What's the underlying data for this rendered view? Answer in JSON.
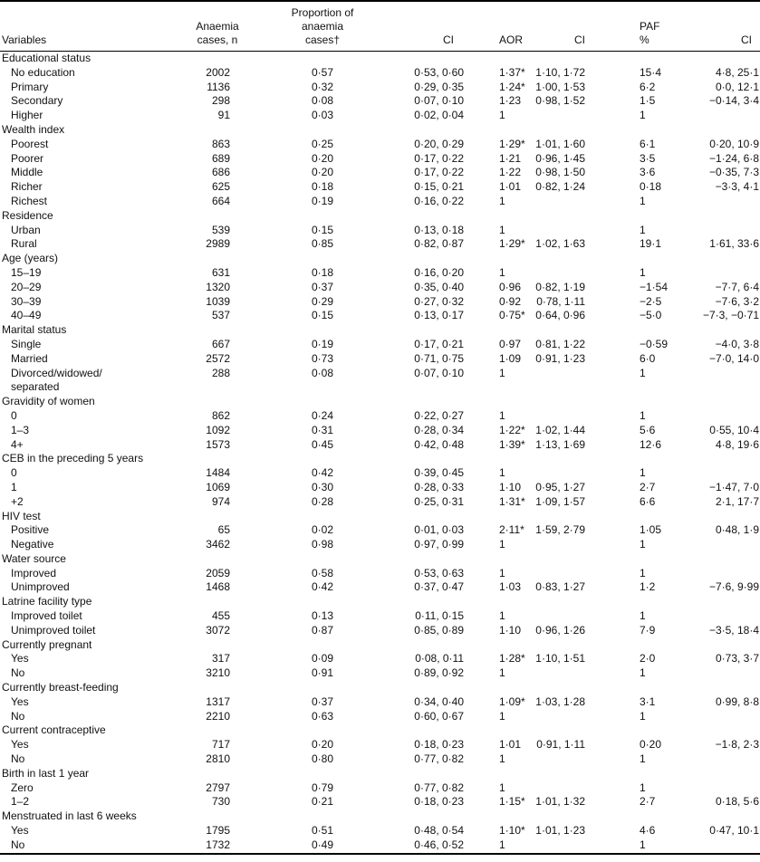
{
  "columns": {
    "variables": "Variables",
    "cases_n": "Anaemia\ncases, n",
    "proportion": "Proportion of\nanaemia\ncases†",
    "ci_proportion": "CI",
    "aor": "AOR",
    "ci_aor": "CI",
    "paf": "PAF\n%",
    "ci_paf": "CI"
  },
  "groups": [
    {
      "label": "Educational status",
      "rows": [
        {
          "variable": "No education",
          "n": "2002",
          "proportion": "0·57",
          "ci1": "0·53, 0·60",
          "aor": "1·37*",
          "ci2": "1·10, 1·72",
          "paf": "15·4",
          "ci3": "4·8, 25·1"
        },
        {
          "variable": "Primary",
          "n": "1136",
          "proportion": "0·32",
          "ci1": "0·29, 0·35",
          "aor": "1·24*",
          "ci2": "1·00, 1·53",
          "paf": "6·2",
          "ci3": "0·0, 12·1"
        },
        {
          "variable": "Secondary",
          "n": "298",
          "proportion": "0·08",
          "ci1": "0·07, 0·10",
          "aor": "1·23",
          "ci2": "0·98, 1·52",
          "paf": "1·5",
          "ci3": "−0·14, 3·4"
        },
        {
          "variable": "Higher",
          "n": "91",
          "proportion": "0·03",
          "ci1": "0·02, 0·04",
          "aor": "1",
          "ci2": "",
          "paf": "1",
          "ci3": ""
        }
      ]
    },
    {
      "label": "Wealth index",
      "rows": [
        {
          "variable": "Poorest",
          "n": "863",
          "proportion": "0·25",
          "ci1": "0·20, 0·29",
          "aor": "1·29*",
          "ci2": "1·01, 1·60",
          "paf": "6·1",
          "ci3": "0·20, 10·9"
        },
        {
          "variable": "Poorer",
          "n": "689",
          "proportion": "0·20",
          "ci1": "0·17, 0·22",
          "aor": "1·21",
          "ci2": "0·96, 1·45",
          "paf": "3·5",
          "ci3": "−1·24, 6·8"
        },
        {
          "variable": "Middle",
          "n": "686",
          "proportion": "0·20",
          "ci1": "0·17, 0·22",
          "aor": "1·22",
          "ci2": "0·98, 1·50",
          "paf": "3·6",
          "ci3": "−0·35, 7·3"
        },
        {
          "variable": "Richer",
          "n": "625",
          "proportion": "0·18",
          "ci1": "0·15, 0·21",
          "aor": "1·01",
          "ci2": "0·82, 1·24",
          "paf": "0·18",
          "ci3": "−3·3, 4·1"
        },
        {
          "variable": "Richest",
          "n": "664",
          "proportion": "0·19",
          "ci1": "0·16, 0·22",
          "aor": "1",
          "ci2": "",
          "paf": "1",
          "ci3": ""
        }
      ]
    },
    {
      "label": "Residence",
      "rows": [
        {
          "variable": "Urban",
          "n": "539",
          "proportion": "0·15",
          "ci1": "0·13, 0·18",
          "aor": "1",
          "ci2": "",
          "paf": "1",
          "ci3": ""
        },
        {
          "variable": "Rural",
          "n": "2989",
          "proportion": "0·85",
          "ci1": "0·82, 0·87",
          "aor": "1·29*",
          "ci2": "1·02, 1·63",
          "paf": "19·1",
          "ci3": "1·61, 33·6"
        }
      ]
    },
    {
      "label": "Age (years)",
      "rows": [
        {
          "variable": "15–19",
          "n": "631",
          "proportion": "0·18",
          "ci1": "0·16, 0·20",
          "aor": "1",
          "ci2": "",
          "paf": "1",
          "ci3": ""
        },
        {
          "variable": "20–29",
          "n": "1320",
          "proportion": "0·37",
          "ci1": "0·35, 0·40",
          "aor": "0·96",
          "ci2": "0·82, 1·19",
          "paf": "−1·54",
          "ci3": "−7·7, 6·4"
        },
        {
          "variable": "30–39",
          "n": "1039",
          "proportion": "0·29",
          "ci1": "0·27, 0·32",
          "aor": "0·92",
          "ci2": "0·78, 1·11",
          "paf": "−2·5",
          "ci3": "−7·6, 3·2"
        },
        {
          "variable": "40–49",
          "n": "537",
          "proportion": "0·15",
          "ci1": "0·13, 0·17",
          "aor": "0·75*",
          "ci2": "0·64, 0·96",
          "paf": "−5·0",
          "ci3": "−7·3, −0·71"
        }
      ]
    },
    {
      "label": "Marital status",
      "rows": [
        {
          "variable": "Single",
          "n": "667",
          "proportion": "0·19",
          "ci1": "0·17, 0·21",
          "aor": "0·97",
          "ci2": "0·81, 1·22",
          "paf": "−0·59",
          "ci3": "−4·0, 3·8"
        },
        {
          "variable": "Married",
          "n": "2572",
          "proportion": "0·73",
          "ci1": "0·71, 0·75",
          "aor": "1·09",
          "ci2": "0·91, 1·23",
          "paf": "6·0",
          "ci3": "−7·0, 14·0"
        },
        {
          "variable": "Divorced/widowed/\nseparated",
          "n": "288",
          "proportion": "0·08",
          "ci1": "0·07, 0·10",
          "aor": "1",
          "ci2": "",
          "paf": "1",
          "ci3": ""
        }
      ]
    },
    {
      "label": "Gravidity of women",
      "rows": [
        {
          "variable": "0",
          "n": "862",
          "proportion": "0·24",
          "ci1": "0·22, 0·27",
          "aor": "1",
          "ci2": "",
          "paf": "1",
          "ci3": ""
        },
        {
          "variable": "1–3",
          "n": "1092",
          "proportion": "0·31",
          "ci1": "0·28, 0·34",
          "aor": "1·22*",
          "ci2": "1·02, 1·44",
          "paf": "5·6",
          "ci3": "0·55, 10·4"
        },
        {
          "variable": "4+",
          "n": "1573",
          "proportion": "0·45",
          "ci1": "0·42, 0·48",
          "aor": "1·39*",
          "ci2": "1·13, 1·69",
          "paf": "12·6",
          "ci3": "4·8, 19·6"
        }
      ]
    },
    {
      "label": "CEB in the preceding 5 years",
      "rows": [
        {
          "variable": "0",
          "n": "1484",
          "proportion": "0·42",
          "ci1": "0·39, 0·45",
          "aor": "1",
          "ci2": "",
          "paf": "1",
          "ci3": ""
        },
        {
          "variable": "1",
          "n": "1069",
          "proportion": "0·30",
          "ci1": "0·28, 0·33",
          "aor": "1·10",
          "ci2": "0·95, 1·27",
          "paf": "2·7",
          "ci3": "−1·47, 7·0"
        },
        {
          "variable": "+2",
          "n": "974",
          "proportion": "0·28",
          "ci1": "0·25, 0·31",
          "aor": "1·31*",
          "ci2": "1·09, 1·57",
          "paf": "6·6",
          "ci3": "2·1, 17·7"
        }
      ]
    },
    {
      "label": "HIV test",
      "rows": [
        {
          "variable": "Positive",
          "n": "65",
          "proportion": "0·02",
          "ci1": "0·01, 0·03",
          "aor": "2·11*",
          "ci2": "1·59, 2·79",
          "paf": "1·05",
          "ci3": "0·48, 1·9"
        },
        {
          "variable": "Negative",
          "n": "3462",
          "proportion": "0·98",
          "ci1": "0·97, 0·99",
          "aor": "1",
          "ci2": "",
          "paf": "1",
          "ci3": ""
        }
      ]
    },
    {
      "label": "Water source",
      "rows": [
        {
          "variable": "Improved",
          "n": "2059",
          "proportion": "0·58",
          "ci1": "0·53, 0·63",
          "aor": "1",
          "ci2": "",
          "paf": "1",
          "ci3": ""
        },
        {
          "variable": "Unimproved",
          "n": "1468",
          "proportion": "0·42",
          "ci1": "0·37, 0·47",
          "aor": "1·03",
          "ci2": "0·83, 1·27",
          "paf": "1·2",
          "ci3": "−7·6, 9·99"
        }
      ]
    },
    {
      "label": "Latrine facility type",
      "rows": [
        {
          "variable": "Improved toilet",
          "n": "455",
          "proportion": "0·13",
          "ci1": "0·11, 0·15",
          "aor": "1",
          "ci2": "",
          "paf": "1",
          "ci3": ""
        },
        {
          "variable": "Unimproved toilet",
          "n": "3072",
          "proportion": "0·87",
          "ci1": "0·85, 0·89",
          "aor": "1·10",
          "ci2": "0·96, 1·26",
          "paf": "7·9",
          "ci3": "−3·5, 18·4"
        }
      ]
    },
    {
      "label": "Currently pregnant",
      "rows": [
        {
          "variable": "Yes",
          "n": "317",
          "proportion": "0·09",
          "ci1": "0·08, 0·11",
          "aor": "1·28*",
          "ci2": "1·10, 1·51",
          "paf": "2·0",
          "ci3": "0·73, 3·7"
        },
        {
          "variable": "No",
          "n": "3210",
          "proportion": "0·91",
          "ci1": "0·89, 0·92",
          "aor": "1",
          "ci2": "",
          "paf": "1",
          "ci3": ""
        }
      ]
    },
    {
      "label": "Currently breast-feeding",
      "rows": [
        {
          "variable": "Yes",
          "n": "1317",
          "proportion": "0·37",
          "ci1": "0·34, 0·40",
          "aor": "1·09*",
          "ci2": "1·03, 1·28",
          "paf": "3·1",
          "ci3": "0·99, 8·8"
        },
        {
          "variable": "No",
          "n": "2210",
          "proportion": "0·63",
          "ci1": "0·60, 0·67",
          "aor": "1",
          "ci2": "",
          "paf": "1",
          "ci3": ""
        }
      ]
    },
    {
      "label": "Current contraceptive",
      "rows": [
        {
          "variable": "Yes",
          "n": "717",
          "proportion": "0·20",
          "ci1": "0·18, 0·23",
          "aor": "1·01",
          "ci2": "0·91, 1·11",
          "paf": "0·20",
          "ci3": "−1·8, 2·3"
        },
        {
          "variable": "No",
          "n": "2810",
          "proportion": "0·80",
          "ci1": "0·77, 0·82",
          "aor": "1",
          "ci2": "",
          "paf": "1",
          "ci3": ""
        }
      ]
    },
    {
      "label": "Birth in last 1 year",
      "rows": [
        {
          "variable": "Zero",
          "n": "2797",
          "proportion": "0·79",
          "ci1": "0·77, 0·82",
          "aor": "1",
          "ci2": "",
          "paf": "1",
          "ci3": ""
        },
        {
          "variable": "1–2",
          "n": "730",
          "proportion": "0·21",
          "ci1": "0·18, 0·23",
          "aor": "1·15*",
          "ci2": "1·01, 1·32",
          "paf": "2·7",
          "ci3": "0·18, 5·6"
        }
      ]
    },
    {
      "label": "Menstruated in last 6 weeks",
      "rows": [
        {
          "variable": "Yes",
          "n": "1795",
          "proportion": "0·51",
          "ci1": "0·48, 0·54",
          "aor": "1·10*",
          "ci2": "1·01, 1·23",
          "paf": "4·6",
          "ci3": "0·47, 10·1"
        },
        {
          "variable": "No",
          "n": "1732",
          "proportion": "0·49",
          "ci1": "0·46, 0·52",
          "aor": "1",
          "ci2": "",
          "paf": "1",
          "ci3": ""
        }
      ]
    }
  ]
}
